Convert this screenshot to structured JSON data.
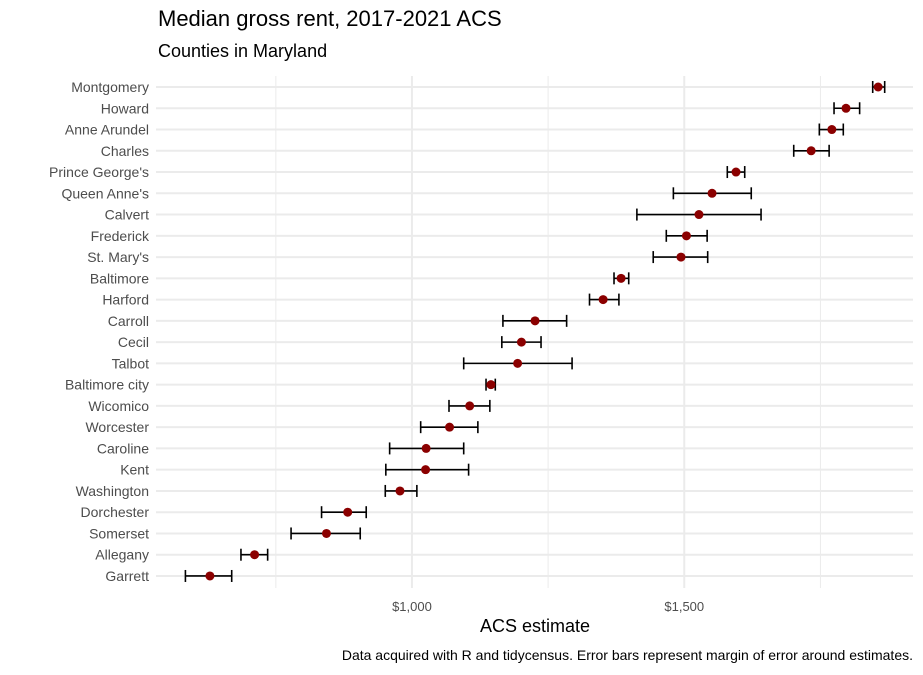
{
  "chart_data": {
    "type": "scatter",
    "title": "Median gross rent, 2017-2021 ACS",
    "subtitle": "Counties in Maryland",
    "xlabel": "ACS estimate",
    "ylabel": "",
    "caption": "Data acquired with R and tidycensus. Error bars represent margin of error around estimates.",
    "xlim": [
      530,
      1920
    ],
    "x_ticks": [
      1000,
      1500
    ],
    "x_tick_labels": [
      "$1,000",
      "$1,500"
    ],
    "grid": true,
    "point_color": "#8b0000",
    "errorbar_color": "#000000",
    "series": [
      {
        "categories": [
          "Montgomery",
          "Howard",
          "Anne Arundel",
          "Charles",
          "Prince George's",
          "Queen Anne's",
          "Calvert",
          "Frederick",
          "St. Mary's",
          "Baltimore",
          "Harford",
          "Carroll",
          "Cecil",
          "Talbot",
          "Baltimore city",
          "Wicomico",
          "Worcester",
          "Caroline",
          "Kent",
          "Washington",
          "Dorchester",
          "Somerset",
          "Allegany",
          "Garrett"
        ],
        "estimate": [
          1856,
          1797,
          1771,
          1733,
          1595,
          1551,
          1527,
          1504,
          1494,
          1384,
          1351,
          1226,
          1201,
          1194,
          1145,
          1106,
          1069,
          1026,
          1025,
          978,
          882,
          843,
          711,
          629
        ],
        "moe_low": [
          1846,
          1775,
          1748,
          1701,
          1579,
          1480,
          1413,
          1467,
          1443,
          1371,
          1326,
          1167,
          1165,
          1095,
          1136,
          1068,
          1016,
          959,
          952,
          951,
          834,
          778,
          686,
          584
        ],
        "moe_high": [
          1868,
          1822,
          1792,
          1766,
          1611,
          1623,
          1641,
          1542,
          1543,
          1398,
          1380,
          1284,
          1237,
          1294,
          1153,
          1143,
          1121,
          1095,
          1104,
          1009,
          916,
          905,
          735,
          669
        ]
      }
    ]
  }
}
